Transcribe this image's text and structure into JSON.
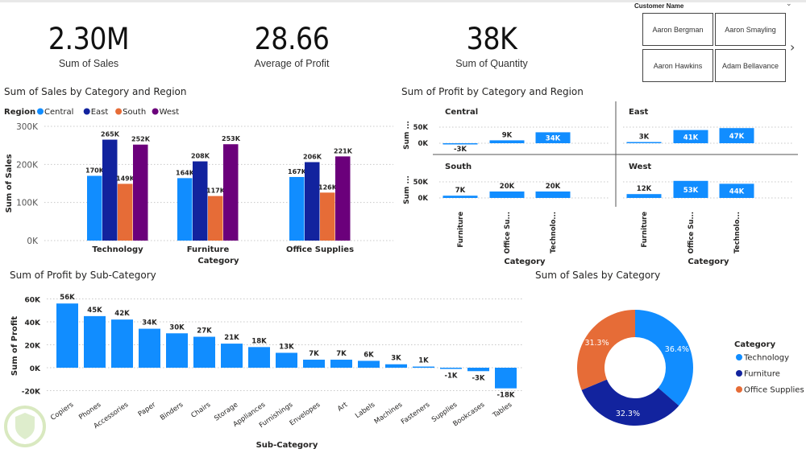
{
  "kpis": [
    {
      "value": "2.30M",
      "label": "Sum of Sales"
    },
    {
      "value": "28.66",
      "label": "Average of Profit"
    },
    {
      "value": "38K",
      "label": "Sum of Quantity"
    }
  ],
  "slicer": {
    "title": "Customer Name",
    "chevron": "chevron-down-icon",
    "items": [
      "Aaron Bergman",
      "Aaron Smayling",
      "Aaron Hawkins",
      "Adam Bellavance"
    ],
    "next_icon": "chevron-right-icon"
  },
  "colors": {
    "central": "#118DFF",
    "east": "#12239E",
    "south": "#E66C37",
    "west": "#6B007B",
    "bar": "#118DFF",
    "grid": "#c8c8c8",
    "text": "#252423"
  },
  "chart_data": [
    {
      "id": "sales-by-category-region",
      "type": "bar",
      "title": "Sum of Sales by Category and Region",
      "legend_title": "Region",
      "legend_position": "top-left",
      "categories": [
        "Technology",
        "Furniture",
        "Office Supplies"
      ],
      "series": [
        {
          "name": "Central",
          "values": [
            170,
            164,
            167
          ],
          "labels": [
            "170K",
            "164K",
            "167K"
          ]
        },
        {
          "name": "East",
          "values": [
            265,
            208,
            206
          ],
          "labels": [
            "265K",
            "208K",
            "206K"
          ]
        },
        {
          "name": "South",
          "values": [
            149,
            117,
            126
          ],
          "labels": [
            "149K",
            "117K",
            "126K"
          ]
        },
        {
          "name": "West",
          "values": [
            252,
            253,
            221
          ],
          "labels": [
            "252K",
            "253K",
            "221K"
          ]
        }
      ],
      "units": "K",
      "xlabel": "Category",
      "ylabel": "Sum of Sales",
      "ylim": [
        0,
        300
      ],
      "yticks": [
        "0K",
        "100K",
        "200K",
        "300K"
      ],
      "grid": true
    },
    {
      "id": "profit-by-category-region",
      "type": "bar",
      "title": "Sum of Profit by Category and Region",
      "panels": [
        {
          "name": "Central",
          "values": [
            -3,
            9,
            34
          ],
          "labels": [
            "-3K",
            "9K",
            "34K"
          ]
        },
        {
          "name": "East",
          "values": [
            3,
            41,
            47
          ],
          "labels": [
            "3K",
            "41K",
            "47K"
          ]
        },
        {
          "name": "South",
          "values": [
            7,
            20,
            20
          ],
          "labels": [
            "7K",
            "20K",
            "20K"
          ]
        },
        {
          "name": "West",
          "values": [
            12,
            53,
            44
          ],
          "labels": [
            "12K",
            "53K",
            "44K"
          ]
        }
      ],
      "categories": [
        "Furniture",
        "Office Su...",
        "Technolo..."
      ],
      "xlabel": "Category",
      "ylabel": "Sum ...",
      "yticks": [
        "0K",
        "50K"
      ],
      "ylim": [
        0,
        50
      ],
      "grid": true
    },
    {
      "id": "profit-by-subcategory",
      "type": "bar",
      "title": "Sum of Profit by Sub-Category",
      "categories": [
        "Copiers",
        "Phones",
        "Accessories",
        "Paper",
        "Binders",
        "Chairs",
        "Storage",
        "Appliances",
        "Furnishings",
        "Envelopes",
        "Art",
        "Labels",
        "Machines",
        "Fasteners",
        "Supplies",
        "Bookcases",
        "Tables"
      ],
      "values": [
        56,
        45,
        42,
        34,
        30,
        27,
        21,
        18,
        13,
        7,
        7,
        6,
        3,
        1,
        -1,
        -3,
        -18
      ],
      "labels": [
        "56K",
        "45K",
        "42K",
        "34K",
        "30K",
        "27K",
        "21K",
        "18K",
        "13K",
        "7K",
        "7K",
        "6K",
        "3K",
        "1K",
        "-1K",
        "-3K",
        "-18K"
      ],
      "xlabel": "Sub-Category",
      "ylabel": "Sum of Profit",
      "ylim": [
        -20,
        60
      ],
      "yticks": [
        "-20K",
        "0K",
        "20K",
        "40K",
        "60K"
      ],
      "grid": true
    },
    {
      "id": "sales-by-category",
      "type": "pie",
      "donut": true,
      "title": "Sum of Sales by Category",
      "legend_title": "Category",
      "legend_position": "right",
      "slices": [
        {
          "name": "Technology",
          "value": 36.4,
          "label": "36.4%"
        },
        {
          "name": "Furniture",
          "value": 32.3,
          "label": "32.3%"
        },
        {
          "name": "Office Supplies",
          "value": 31.3,
          "label": "31.3%"
        }
      ]
    }
  ]
}
